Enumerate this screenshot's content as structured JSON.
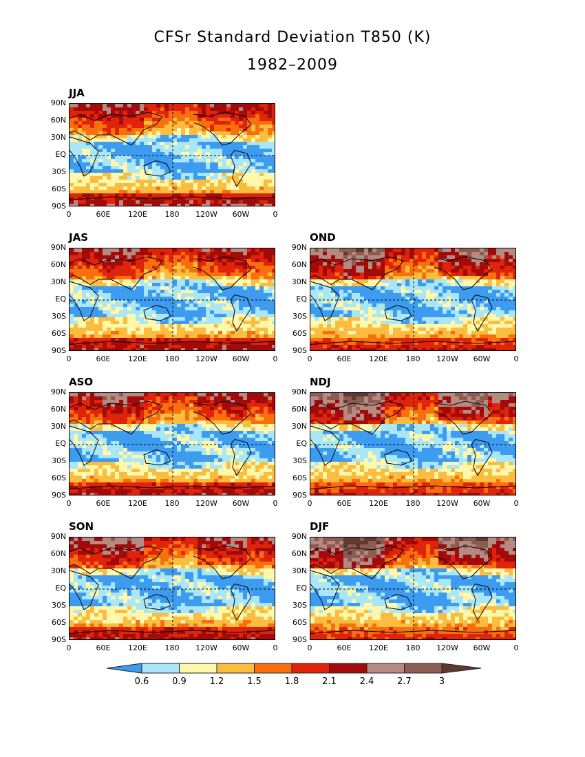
{
  "title": "CFSr Standard Deviation T850 (K)",
  "subtitle": "1982–2009",
  "lat_labels": [
    "90N",
    "60N",
    "30N",
    "EQ",
    "30S",
    "60S",
    "90S"
  ],
  "lon_labels": [
    "0",
    "60E",
    "120E",
    "180",
    "120W",
    "60W",
    "0"
  ],
  "panels": [
    {
      "id": "jja",
      "label": "JJA",
      "intensity": 0.45
    },
    {
      "id": "jas",
      "label": "JAS",
      "intensity": 0.5
    },
    {
      "id": "ond",
      "label": "OND",
      "intensity": 0.8
    },
    {
      "id": "aso",
      "label": "ASO",
      "intensity": 0.55
    },
    {
      "id": "ndj",
      "label": "NDJ",
      "intensity": 0.9
    },
    {
      "id": "son",
      "label": "SON",
      "intensity": 0.6
    },
    {
      "id": "djf",
      "label": "DJF",
      "intensity": 1.0
    }
  ],
  "colorbar": {
    "labels": [
      "0.6",
      "0.9",
      "1.2",
      "1.5",
      "1.8",
      "2.1",
      "2.4",
      "2.7",
      "3"
    ],
    "colors": [
      "#3d9cf0",
      "#a9e6f7",
      "#fff7aa",
      "#fbbd3f",
      "#f8700e",
      "#e0240c",
      "#a30a0a",
      "#b48a82",
      "#8c5c52",
      "#5c3a30"
    ]
  }
}
